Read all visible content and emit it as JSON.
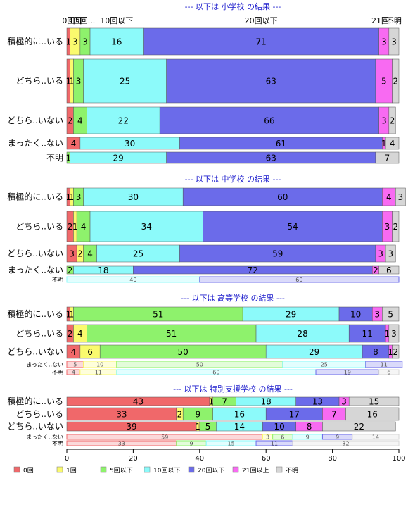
{
  "chart_data": {
    "type": "bar",
    "orientation": "horizontal-stacked",
    "xlim": [
      0,
      100
    ],
    "x_ticks": [
      0,
      20,
      40,
      60,
      80,
      100
    ],
    "series_names": [
      "0回",
      "1回",
      "5回以下",
      "10回以下",
      "20回以下",
      "21回以上",
      "不明"
    ],
    "colors": [
      "#f0686a",
      "#fafa6e",
      "#8ef26c",
      "#8cfafa",
      "#6b6bea",
      "#f86af2",
      "#d6d6d6"
    ],
    "top_labels": {
      "s0": "0回",
      "s1": "1回",
      "s2": "5回...",
      "s3": "10回以下",
      "s4": "20回以下",
      "s5": "21回...",
      "s6": "不明"
    },
    "panels": [
      {
        "title": "--- 以下は 小学校 の結果 ---",
        "rows": [
          {
            "label": "積極的に..いる",
            "values": [
              1,
              3,
              3,
              16,
              71,
              3,
              3
            ]
          },
          {
            "label": "どちら..いる",
            "values": [
              1,
              1,
              3,
              25,
              63,
              5,
              2
            ]
          },
          {
            "label": "どちら..いない",
            "values": [
              2,
              0,
              4,
              22,
              66,
              3,
              2
            ]
          },
          {
            "label": "まったく..ない",
            "values": [
              4,
              0,
              0,
              30,
              61,
              1,
              4
            ]
          },
          {
            "label": "不明",
            "values": [
              0,
              0,
              1,
              29,
              63,
              0,
              7
            ]
          }
        ]
      },
      {
        "title": "--- 以下は 中学校 の結果 ---",
        "rows": [
          {
            "label": "積極的に..いる",
            "values": [
              1,
              1,
              3,
              30,
              60,
              4,
              3
            ]
          },
          {
            "label": "どちら..いる",
            "values": [
              2,
              1,
              4,
              34,
              54,
              3,
              2
            ]
          },
          {
            "label": "どちら..いない",
            "values": [
              3,
              2,
              4,
              25,
              59,
              3,
              3
            ]
          },
          {
            "label": "まったく..ない",
            "values": [
              0,
              0,
              2,
              18,
              72,
              2,
              6
            ]
          },
          {
            "label": "不明",
            "values": [
              0,
              0,
              0,
              40,
              60,
              0,
              0
            ]
          }
        ]
      },
      {
        "title": "--- 以下は 高等学校 の結果 ---",
        "rows": [
          {
            "label": "積極的に..いる",
            "values": [
              1,
              1,
              51,
              29,
              10,
              3,
              5
            ]
          },
          {
            "label": "どちら..いる",
            "values": [
              2,
              4,
              51,
              28,
              11,
              1,
              3
            ]
          },
          {
            "label": "どちら..いない",
            "values": [
              4,
              6,
              50,
              29,
              8,
              1,
              2
            ]
          },
          {
            "label": "まったく..ない",
            "values": [
              5,
              10,
              50,
              25,
              11,
              0,
              0
            ]
          },
          {
            "label": "不明",
            "values": [
              4,
              11,
              0,
              60,
              19,
              0,
              6
            ]
          }
        ]
      },
      {
        "title": "--- 以下は 特別支援学校 の結果 ---",
        "rows": [
          {
            "label": "積極的に..いる",
            "values": [
              43,
              1,
              7,
              18,
              13,
              3,
              15
            ]
          },
          {
            "label": "どちら..いる",
            "values": [
              33,
              2,
              9,
              16,
              17,
              7,
              16
            ]
          },
          {
            "label": "どちら..いない",
            "values": [
              39,
              1,
              5,
              14,
              10,
              8,
              22
            ]
          },
          {
            "label": "まったく..ない",
            "values": [
              59,
              3,
              6,
              9,
              9,
              0,
              14
            ]
          },
          {
            "label": "不明",
            "values": [
              33,
              0,
              9,
              15,
              11,
              0,
              32
            ]
          }
        ]
      }
    ],
    "legend_placement": "bottom"
  }
}
